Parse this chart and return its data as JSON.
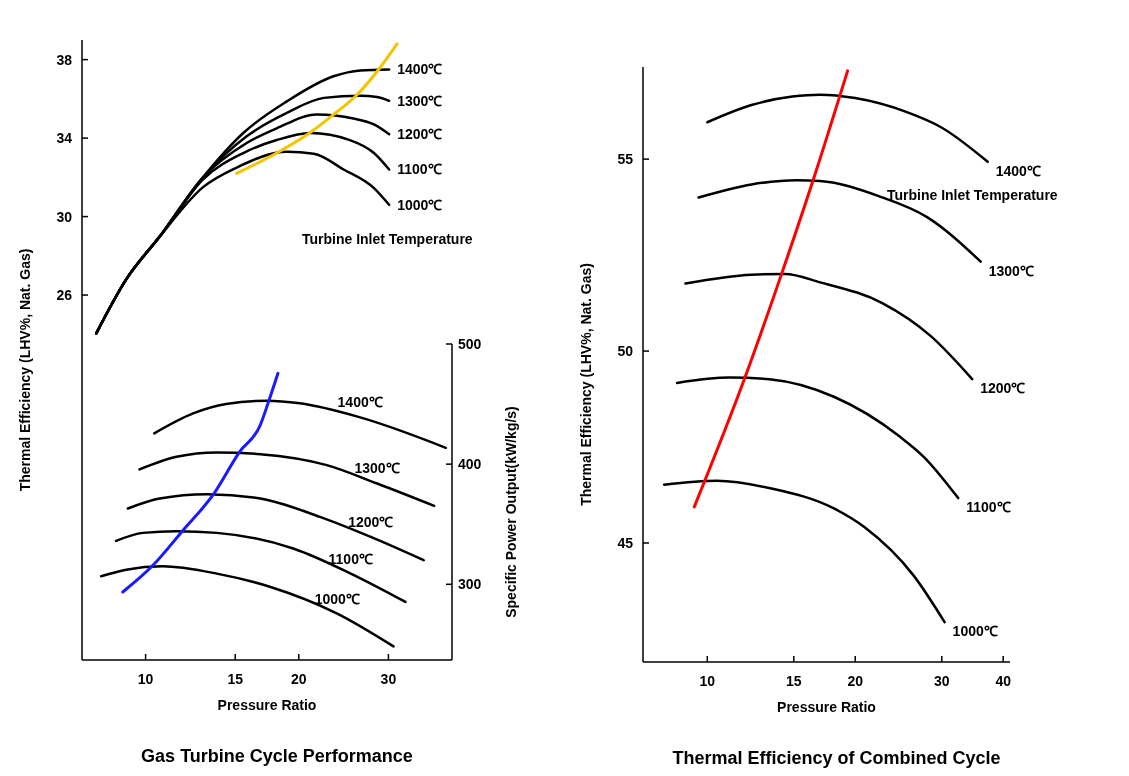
{
  "chart_data": [
    {
      "type": "line",
      "title": "Gas Turbine Cycle Performance",
      "xlabel": "Pressure Ratio",
      "ylabel": "Thermal Efficiency (LHV%, Nat. Gas)",
      "y2label": "Specific Power Output(kW/kg/s)",
      "log": "x",
      "xlim": [
        7.5,
        40
      ],
      "xticks": [
        10,
        15,
        20,
        30
      ],
      "ylim": [
        7.4,
        39
      ],
      "yticks": [
        26,
        30,
        34,
        38
      ],
      "y2lim": [
        237,
        500
      ],
      "y2ticks": [
        300,
        400,
        500
      ],
      "grid": false,
      "marker": "none",
      "line_style": "solid",
      "annotations": [
        "Turbine Inlet Temperature"
      ],
      "series": [
        {
          "name": "1400℃",
          "color": "#000000",
          "x": [
            8.0,
            9.16,
            10.66,
            12.97,
            15.56,
            18.95,
            23.4,
            26.4,
            30.1
          ],
          "values": [
            24.05,
            26.8,
            28.98,
            32.0,
            34.26,
            35.87,
            37.15,
            37.45,
            37.5
          ]
        },
        {
          "name": "1300℃",
          "color": "#000000",
          "x": [
            8.0,
            9.16,
            10.66,
            12.97,
            15.8,
            18.95,
            22.4,
            26.4,
            28.5,
            30.1
          ],
          "values": [
            24.05,
            26.8,
            28.98,
            32.0,
            34.09,
            35.28,
            36.05,
            36.16,
            36.1,
            35.9
          ]
        },
        {
          "name": "1200℃",
          "color": "#000000",
          "x": [
            8.0,
            9.16,
            10.66,
            12.97,
            15.8,
            18.1,
            21.7,
            25.6,
            28.1,
            30.1
          ],
          "values": [
            24.05,
            26.8,
            28.98,
            32.0,
            33.75,
            34.5,
            35.2,
            35.0,
            34.7,
            34.2
          ]
        },
        {
          "name": "1100℃",
          "color": "#000000",
          "x": [
            8.0,
            9.16,
            10.66,
            12.97,
            15.56,
            18.1,
            21.06,
            25.2,
            28.1,
            30.1
          ],
          "values": [
            24.05,
            26.8,
            28.98,
            31.9,
            33.24,
            33.9,
            34.26,
            33.9,
            33.24,
            32.4
          ]
        },
        {
          "name": "1000℃",
          "color": "#000000",
          "x": [
            8.0,
            9.16,
            10.66,
            12.97,
            15.1,
            18.95,
            21.4,
            24.5,
            28.1,
            30.1
          ],
          "values": [
            24.05,
            26.8,
            28.98,
            31.5,
            32.5,
            33.3,
            33.2,
            32.4,
            31.45,
            30.6
          ]
        },
        {
          "color": "#f5c400",
          "x": [
            15.1,
            18.1,
            20.75,
            23.4,
            26.0,
            28.9,
            31.2
          ],
          "values": [
            32.2,
            33.24,
            34.17,
            35.2,
            36.2,
            37.6,
            38.8
          ]
        },
        {
          "name": "1400℃",
          "axis": "y2",
          "color": "#000000",
          "x": [
            10.4,
            12.4,
            14.4,
            17.3,
            20.1,
            26.4,
            38.9
          ],
          "values": [
            425.6,
            442.2,
            450,
            452.8,
            450.6,
            438.9,
            413.6
          ]
        },
        {
          "name": "1300℃",
          "axis": "y2",
          "color": "#000000",
          "x": [
            9.73,
            11.5,
            13.8,
            16.8,
            22.7,
            28.5,
            36.9
          ],
          "values": [
            395.6,
            406.1,
            409.7,
            408.3,
            399.2,
            383.9,
            365.3
          ]
        },
        {
          "name": "1200℃",
          "axis": "y2",
          "color": "#000000",
          "x": [
            9.23,
            10.66,
            13.2,
            16.8,
            22.0,
            27.7,
            35.2
          ],
          "values": [
            363.1,
            371.4,
            375,
            371.4,
            356.1,
            339.4,
            320
          ]
        },
        {
          "name": "1100℃",
          "axis": "y2",
          "color": "#000000",
          "x": [
            8.75,
            9.88,
            11.5,
            13.8,
            19.5,
            25.3,
            32.4
          ],
          "values": [
            336.1,
            342.8,
            344.2,
            342.8,
            329.8,
            308.9,
            285.3
          ]
        },
        {
          "name": "1000℃",
          "axis": "y2",
          "color": "#000000",
          "x": [
            8.18,
            9.16,
            10.8,
            13.8,
            17.6,
            23.8,
            30.7
          ],
          "values": [
            306.7,
            312.2,
            315,
            308.9,
            297.8,
            275.6,
            248.3
          ]
        },
        {
          "axis": "y2",
          "color": "#1a1aff",
          "x": [
            9.02,
            10.34,
            11.85,
            13.6,
            15.3,
            16.8,
            17.4,
            18.2
          ],
          "values": [
            293.6,
            315.8,
            345,
            375,
            410.3,
            432.5,
            450.6,
            475.6
          ]
        }
      ]
    },
    {
      "type": "line",
      "title": "Thermal Efficiency of Combined Cycle",
      "xlabel": "Pressure Ratio",
      "ylabel": "Thermal Efficiency (LHV%, Nat. Gas)",
      "log": "x",
      "xlim": [
        7.4,
        41.3
      ],
      "xticks": [
        10,
        15,
        20,
        30,
        40
      ],
      "ylim": [
        41.9,
        57.4
      ],
      "yticks": [
        45,
        50,
        55
      ],
      "grid": false,
      "marker": "none",
      "line_style": "solid",
      "annotations": [
        "Turbine Inlet Temperature"
      ],
      "series": [
        {
          "name": "1400℃",
          "color": "#000000",
          "x": [
            10.0,
            12.3,
            14.9,
            16.97,
            20.0,
            25.4,
            29.9,
            37.2
          ],
          "values": [
            55.96,
            56.41,
            56.63,
            56.68,
            56.59,
            56.23,
            55.83,
            54.93
          ]
        },
        {
          "name": "1300℃",
          "color": "#000000",
          "x": [
            9.6,
            12.3,
            15.2,
            16.97,
            22.4,
            28.0,
            36.0
          ],
          "values": [
            54.0,
            54.34,
            54.45,
            54.43,
            54.03,
            53.49,
            52.33
          ]
        },
        {
          "name": "1200℃",
          "color": "#000000",
          "x": [
            9.03,
            12.3,
            14.4,
            16.97,
            22.7,
            28.5,
            34.6
          ],
          "values": [
            51.76,
            51.99,
            52.01,
            51.79,
            51.25,
            50.39,
            49.27
          ]
        },
        {
          "name": "1100℃",
          "color": "#000000",
          "x": [
            8.68,
            11.1,
            13.5,
            18.1,
            24.6,
            27.6,
            32.4
          ],
          "values": [
            49.17,
            49.31,
            49.26,
            48.81,
            47.78,
            47.24,
            46.17
          ]
        },
        {
          "name": "1000℃",
          "color": "#000000",
          "x": [
            8.17,
            10.45,
            13.5,
            18.1,
            20.9,
            26.3,
            30.4
          ],
          "values": [
            46.52,
            46.62,
            46.42,
            45.9,
            45.41,
            44.15,
            42.94
          ]
        },
        {
          "color": "#ff0000",
          "x": [
            9.41,
            11.9,
            14.2,
            16.4,
            19.3
          ],
          "values": [
            45.94,
            49.27,
            52.05,
            54.43,
            57.3
          ]
        }
      ]
    }
  ]
}
